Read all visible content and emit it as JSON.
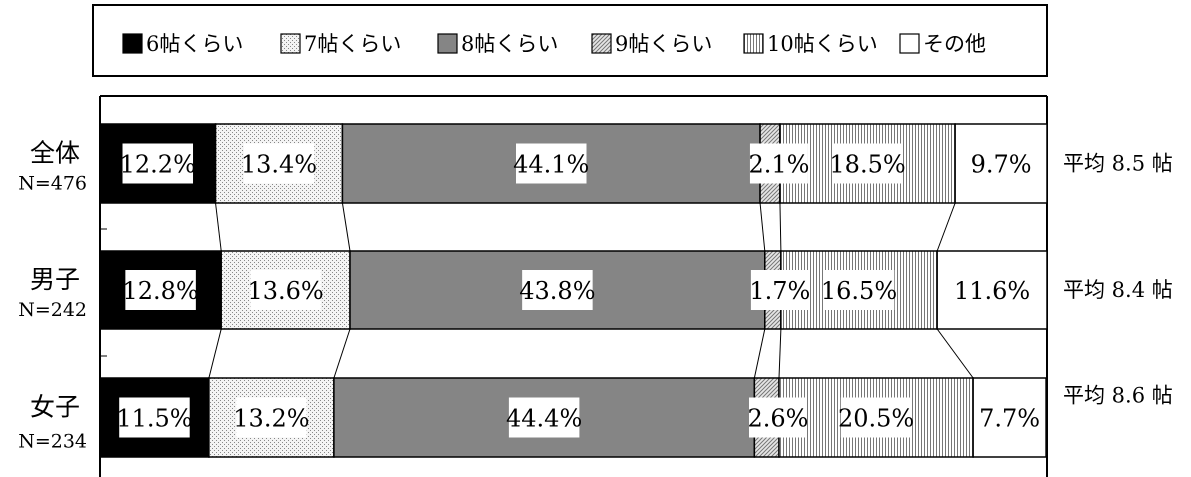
{
  "chart_data": {
    "type": "bar",
    "orientation": "horizontal",
    "stacked": true,
    "normalized_percent": true,
    "series": [
      {
        "name": "6帖くらい",
        "pattern": "solid-black",
        "values": [
          12.2,
          12.8,
          11.5
        ]
      },
      {
        "name": "7帖くらい",
        "pattern": "light-dots",
        "values": [
          13.4,
          13.6,
          13.2
        ]
      },
      {
        "name": "8帖くらい",
        "pattern": "dark-gray",
        "values": [
          44.1,
          43.8,
          44.4
        ]
      },
      {
        "name": "9帖くらい",
        "pattern": "diagonal-hatch",
        "values": [
          2.1,
          1.7,
          2.6
        ]
      },
      {
        "name": "10帖くらい",
        "pattern": "vertical-stripes",
        "values": [
          18.5,
          16.5,
          20.5
        ]
      },
      {
        "name": "その他",
        "pattern": "white",
        "values": [
          9.7,
          11.6,
          7.7
        ]
      }
    ],
    "categories": [
      {
        "name": "全体",
        "n": "N=476",
        "avg": "平均 8.5 帖"
      },
      {
        "name": "男子",
        "n": "N=242",
        "avg": "平均 8.4 帖"
      },
      {
        "name": "女子",
        "n": "N=234",
        "avg": "平均 8.6 帖"
      }
    ],
    "xlim": [
      0,
      100
    ],
    "legend_position": "top",
    "series_lines": true,
    "grid": false
  }
}
